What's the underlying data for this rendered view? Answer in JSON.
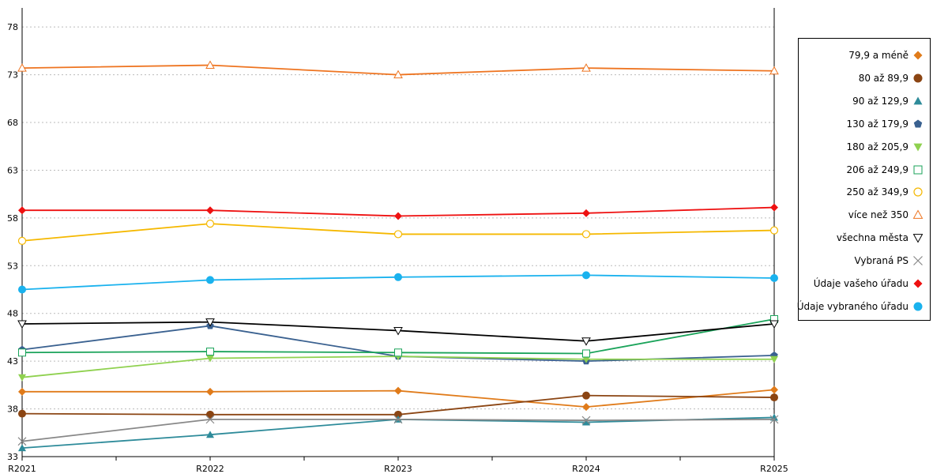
{
  "chart_data": {
    "type": "line",
    "title": "",
    "xlabel": "",
    "ylabel": "",
    "categories": [
      "R2021",
      "R2022",
      "R2023",
      "R2024",
      "R2025"
    ],
    "ylim": [
      33,
      80
    ],
    "yticks": [
      33,
      38,
      43,
      48,
      53,
      58,
      63,
      68,
      73,
      78
    ],
    "grid": "horizontal dotted",
    "legend_position": "right",
    "series": [
      {
        "name": "79,9 a méně",
        "color": "#e07b1a",
        "marker": "diamond",
        "values": [
          39.8,
          39.8,
          39.9,
          38.2,
          40.0
        ]
      },
      {
        "name": "80 až 89,9",
        "color": "#8b4513",
        "marker": "circle-filled",
        "values": [
          37.5,
          37.4,
          37.4,
          39.4,
          39.2
        ]
      },
      {
        "name": "90 až 129,9",
        "color": "#2e8b9a",
        "marker": "triangle-up-filled",
        "values": [
          33.9,
          35.3,
          36.9,
          36.6,
          37.1
        ]
      },
      {
        "name": "130 až 179,9",
        "color": "#3a6190",
        "marker": "pentagon-filled",
        "values": [
          44.2,
          46.7,
          43.5,
          43.0,
          43.6
        ]
      },
      {
        "name": "180 až 205,9",
        "color": "#8fd14f",
        "marker": "triangle-down-filled",
        "values": [
          41.3,
          43.3,
          43.5,
          43.2,
          43.2
        ]
      },
      {
        "name": "206 až 249,9",
        "color": "#1aa35a",
        "marker": "square-open",
        "values": [
          43.9,
          44.0,
          43.9,
          43.8,
          47.4
        ]
      },
      {
        "name": "250 až 349,9",
        "color": "#f5b800",
        "marker": "circle-open",
        "values": [
          55.6,
          57.4,
          56.3,
          56.3,
          56.7
        ]
      },
      {
        "name": "více než 350",
        "color": "#ee7420",
        "marker": "triangle-up-open",
        "values": [
          73.7,
          74.0,
          73.0,
          73.7,
          73.4
        ]
      },
      {
        "name": "všechna města",
        "color": "#000000",
        "marker": "triangle-down-open",
        "values": [
          46.9,
          47.1,
          46.2,
          45.1,
          46.9
        ]
      },
      {
        "name": "Vybraná PS",
        "color": "#888888",
        "marker": "cross",
        "values": [
          34.6,
          36.9,
          36.9,
          36.8,
          36.9
        ]
      },
      {
        "name": "Údaje vašeho úřadu",
        "color": "#ee1111",
        "marker": "diamond",
        "values": [
          58.8,
          58.8,
          58.2,
          58.5,
          59.1
        ]
      },
      {
        "name": "Údaje vybraného úřadu",
        "color": "#1ab2ee",
        "marker": "circle-filled",
        "values": [
          50.5,
          51.5,
          51.8,
          52.0,
          51.7
        ]
      }
    ]
  }
}
